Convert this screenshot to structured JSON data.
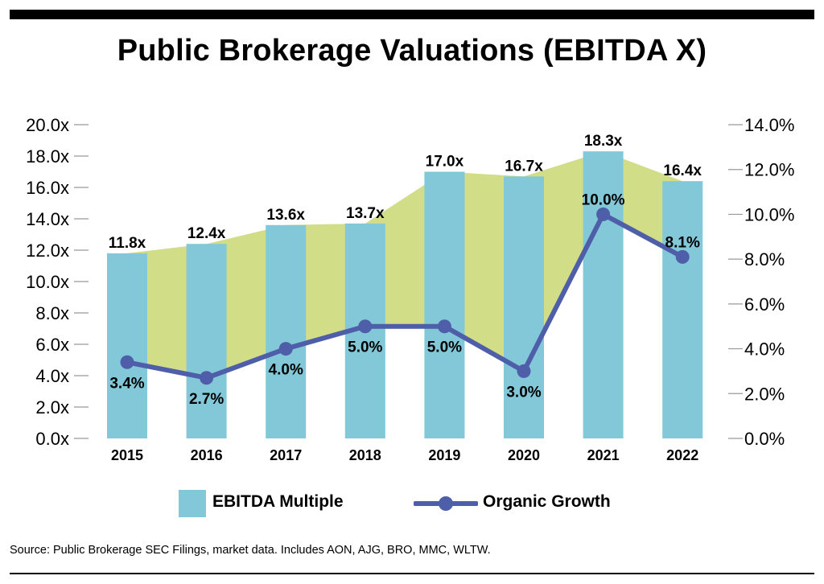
{
  "title": "Public Brokerage Valuations (EBITDA X)",
  "source": "Source: Public Brokerage SEC Filings, market data. Includes AON, AJG, BRO, MMC, WLTW.",
  "legend": {
    "bar_label": "EBITDA Multiple",
    "line_label": "Organic Growth"
  },
  "colors": {
    "bar": "#82c8d8",
    "area": "#d2dd88",
    "line": "#4f5ea9"
  },
  "chart_data": {
    "type": "bar",
    "categories": [
      "2015",
      "2016",
      "2017",
      "2018",
      "2019",
      "2020",
      "2021",
      "2022"
    ],
    "series": [
      {
        "name": "EBITDA Multiple",
        "type": "bar",
        "axis": "left",
        "values": [
          11.8,
          12.4,
          13.6,
          13.7,
          17.0,
          16.7,
          18.3,
          16.4
        ],
        "labels": [
          "11.8x",
          "12.4x",
          "13.6x",
          "13.7x",
          "17.0x",
          "16.7x",
          "18.3x",
          "16.4x"
        ]
      },
      {
        "name": "Organic Growth",
        "type": "line",
        "axis": "right",
        "values": [
          3.4,
          2.7,
          4.0,
          5.0,
          5.0,
          3.0,
          10.0,
          8.1
        ],
        "labels": [
          "3.4%",
          "2.7%",
          "4.0%",
          "5.0%",
          "5.0%",
          "3.0%",
          "10.0%",
          "8.1%"
        ]
      }
    ],
    "y_left": {
      "lim": [
        0,
        20
      ],
      "ticks": [
        "0.0x",
        "2.0x",
        "4.0x",
        "6.0x",
        "8.0x",
        "10.0x",
        "12.0x",
        "14.0x",
        "16.0x",
        "18.0x",
        "20.0x"
      ]
    },
    "y_right": {
      "lim": [
        0,
        14
      ],
      "ticks": [
        "0.0%",
        "2.0%",
        "4.0%",
        "6.0%",
        "8.0%",
        "10.0%",
        "12.0%",
        "14.0%"
      ]
    },
    "shaded_area_between_series": true,
    "grid": false,
    "legend_position": "bottom"
  }
}
